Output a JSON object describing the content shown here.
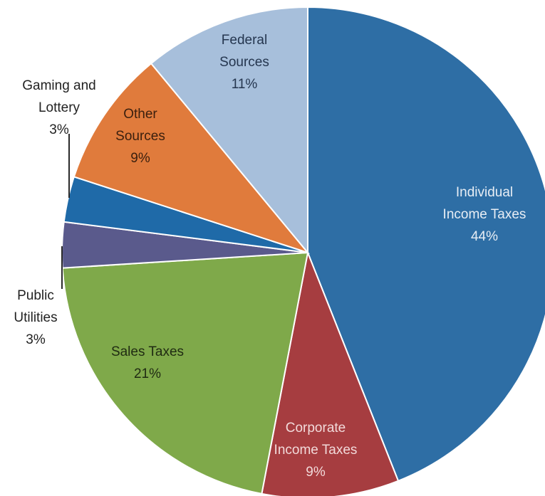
{
  "chart_data": {
    "type": "pie",
    "title": "",
    "start_angle_deg": 0,
    "direction": "clockwise",
    "slices": [
      {
        "label_lines": [
          "Individual",
          "Income Taxes"
        ],
        "percent_label": "44%",
        "value": 44,
        "color": "#2e6ea5",
        "label_color": "#e8eef5"
      },
      {
        "label_lines": [
          "Corporate",
          "Income Taxes"
        ],
        "percent_label": "9%",
        "value": 9,
        "color": "#a63d40",
        "label_color": "#f2dada"
      },
      {
        "label_lines": [
          "Sales Taxes"
        ],
        "percent_label": "21%",
        "value": 21,
        "color": "#7fa94a",
        "label_color": "#1f2a12"
      },
      {
        "label_lines": [
          "Public",
          "Utilities"
        ],
        "percent_label": "3%",
        "value": 3,
        "color": "#5a5a8c",
        "label_color": "#222222",
        "outside": true
      },
      {
        "label_lines": [
          "Gaming and",
          "Lottery"
        ],
        "percent_label": "3%",
        "value": 3,
        "color": "#1f6aa8",
        "label_color": "#222222",
        "outside": true
      },
      {
        "label_lines": [
          "Other",
          "Sources"
        ],
        "percent_label": "9%",
        "value": 9,
        "color": "#e07b3c",
        "label_color": "#3a1f0e"
      },
      {
        "label_lines": [
          "Federal",
          "Sources"
        ],
        "percent_label": "11%",
        "value": 11,
        "color": "#a7bfdb",
        "label_color": "#25364f"
      }
    ]
  }
}
